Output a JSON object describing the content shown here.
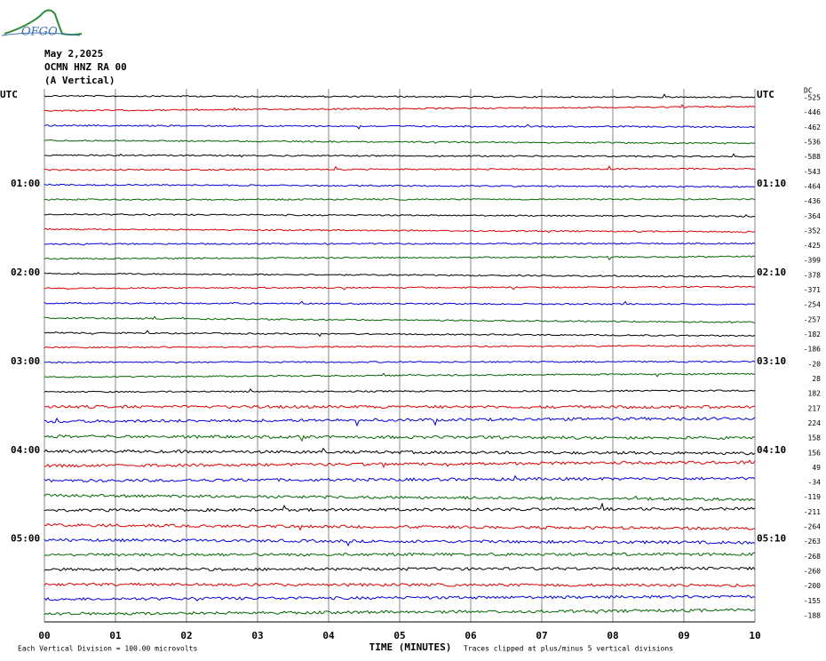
{
  "logo": "OFGO",
  "header": {
    "lines": [
      "May 2,2025",
      "OCMN HNZ RA 00",
      "(A Vertical)"
    ]
  },
  "left_labels": [
    "UTC",
    "01:00",
    "02:00",
    "03:00",
    "04:00",
    "05:00"
  ],
  "right_labels": [
    "UTC",
    "01:10",
    "02:10",
    "03:10",
    "04:10",
    "05:10"
  ],
  "dc_label": "DC",
  "dc_values": [
    -525,
    -446,
    -462,
    -536,
    -588,
    -543,
    -464,
    -436,
    -364,
    -352,
    -425,
    -399,
    -378,
    -371,
    -254,
    -257,
    -182,
    -186,
    -20,
    28,
    182,
    217,
    224,
    158,
    156,
    49,
    -34,
    -119,
    -211,
    -264,
    -263,
    -268,
    -260,
    -200,
    -155,
    -188
  ],
  "x_axis": {
    "ticks": [
      "00",
      "01",
      "02",
      "03",
      "04",
      "05",
      "06",
      "07",
      "08",
      "09",
      "10"
    ],
    "title": "TIME (MINUTES)"
  },
  "footer": {
    "left": "Each Vertical Division =  100.00 microvolts",
    "right": "Traces clipped at plus/minus 5 vertical divisions"
  }
}
